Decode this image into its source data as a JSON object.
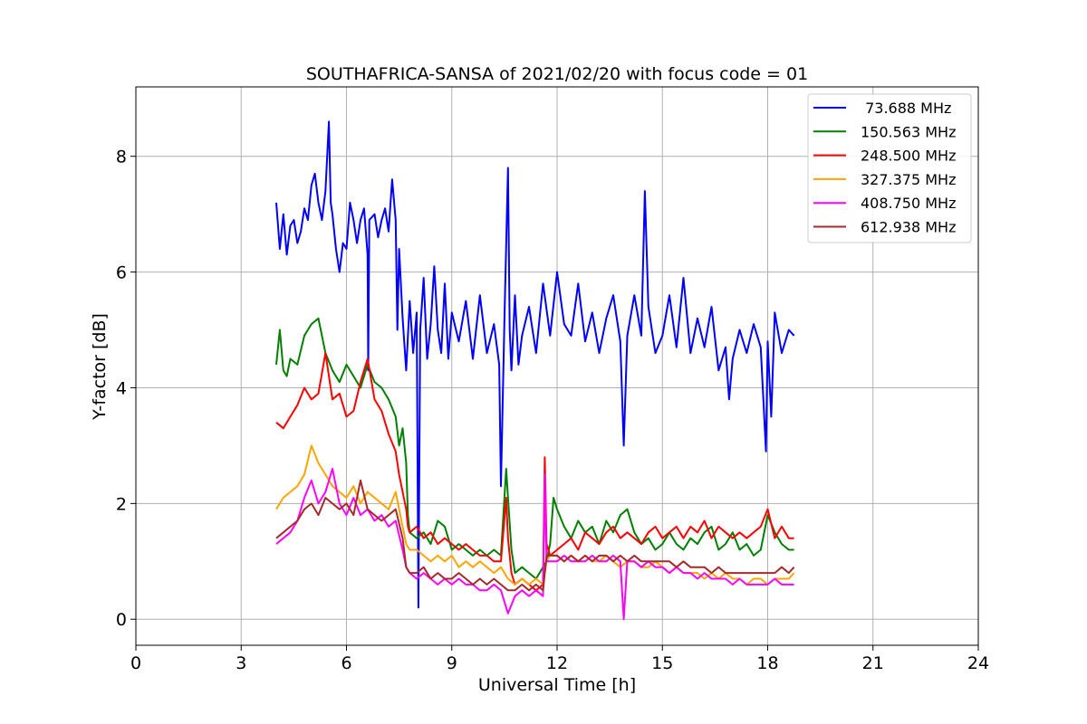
{
  "chart_data": {
    "type": "line",
    "title": "SOUTHAFRICA-SANSA of 2021/02/20 with focus code = 01",
    "xlabel": "Universal Time [h]",
    "ylabel": "Y-factor [dB]",
    "xlim": [
      0,
      24
    ],
    "ylim": [
      -0.45,
      9.2
    ],
    "xticks": [
      0,
      3,
      6,
      9,
      12,
      15,
      18,
      21,
      24
    ],
    "yticks": [
      0,
      2,
      4,
      6,
      8
    ],
    "grid": true,
    "legend_position": "top-right",
    "series": [
      {
        "name": " 73.688 MHz",
        "color": "#0000ff",
        "x": [
          4.0,
          4.1,
          4.2,
          4.3,
          4.4,
          4.5,
          4.6,
          4.7,
          4.8,
          4.9,
          5.0,
          5.1,
          5.2,
          5.3,
          5.4,
          5.5,
          5.55,
          5.6,
          5.7,
          5.8,
          5.9,
          6.0,
          6.1,
          6.2,
          6.3,
          6.4,
          6.5,
          6.6,
          6.62,
          6.65,
          6.8,
          6.9,
          7.0,
          7.1,
          7.2,
          7.3,
          7.4,
          7.45,
          7.5,
          7.6,
          7.7,
          7.8,
          7.9,
          8.0,
          8.05,
          8.1,
          8.2,
          8.3,
          8.4,
          8.5,
          8.6,
          8.7,
          8.8,
          8.9,
          9.0,
          9.2,
          9.4,
          9.6,
          9.8,
          10.0,
          10.2,
          10.35,
          10.4,
          10.5,
          10.6,
          10.65,
          10.7,
          10.8,
          10.9,
          11.0,
          11.2,
          11.4,
          11.6,
          11.8,
          12.0,
          12.2,
          12.4,
          12.6,
          12.8,
          13.0,
          13.2,
          13.4,
          13.6,
          13.8,
          13.9,
          14.0,
          14.2,
          14.4,
          14.5,
          14.6,
          14.8,
          15.0,
          15.2,
          15.4,
          15.6,
          15.8,
          16.0,
          16.2,
          16.4,
          16.6,
          16.8,
          16.9,
          17.0,
          17.2,
          17.4,
          17.6,
          17.8,
          17.95,
          18.0,
          18.1,
          18.2,
          18.4,
          18.6,
          18.75
        ],
        "y": [
          7.2,
          6.4,
          7.0,
          6.3,
          6.8,
          6.9,
          6.5,
          6.7,
          7.1,
          6.9,
          7.5,
          7.7,
          7.2,
          6.9,
          7.4,
          8.6,
          7.2,
          7.0,
          6.4,
          6.0,
          6.5,
          6.4,
          7.2,
          6.9,
          6.5,
          6.9,
          7.1,
          6.3,
          4.3,
          6.9,
          7.0,
          6.6,
          6.9,
          7.1,
          6.7,
          7.6,
          6.9,
          5.0,
          6.4,
          5.2,
          4.3,
          5.5,
          4.6,
          5.3,
          0.2,
          5.0,
          5.9,
          4.5,
          5.1,
          6.1,
          5.0,
          4.6,
          5.8,
          4.5,
          5.3,
          4.8,
          5.5,
          4.5,
          5.6,
          4.6,
          5.1,
          4.4,
          2.3,
          5.2,
          7.8,
          5.0,
          4.3,
          5.6,
          4.4,
          4.9,
          5.4,
          4.6,
          5.8,
          4.9,
          6.0,
          5.1,
          4.9,
          5.8,
          4.8,
          5.3,
          4.6,
          5.2,
          5.6,
          4.8,
          3.0,
          4.9,
          5.6,
          4.9,
          7.4,
          5.4,
          4.6,
          4.9,
          5.6,
          4.7,
          5.9,
          4.6,
          5.2,
          4.7,
          5.4,
          4.3,
          4.7,
          3.8,
          4.5,
          5.0,
          4.6,
          5.1,
          4.7,
          2.9,
          4.8,
          3.5,
          5.3,
          4.6,
          5.0,
          4.9
        ]
      },
      {
        "name": "150.563 MHz",
        "color": "#008000",
        "x": [
          4.0,
          4.1,
          4.2,
          4.3,
          4.4,
          4.6,
          4.8,
          5.0,
          5.2,
          5.4,
          5.6,
          5.8,
          6.0,
          6.2,
          6.4,
          6.6,
          6.8,
          7.0,
          7.2,
          7.4,
          7.5,
          7.6,
          7.7,
          7.75,
          7.8,
          8.0,
          8.2,
          8.4,
          8.6,
          8.8,
          9.0,
          9.2,
          9.4,
          9.6,
          9.8,
          10.0,
          10.2,
          10.4,
          10.55,
          10.6,
          10.7,
          10.8,
          11.0,
          11.2,
          11.4,
          11.6,
          11.7,
          11.8,
          11.9,
          12.0,
          12.2,
          12.4,
          12.6,
          12.8,
          13.0,
          13.2,
          13.4,
          13.6,
          13.8,
          14.0,
          14.2,
          14.4,
          14.6,
          14.8,
          15.0,
          15.2,
          15.4,
          15.6,
          15.8,
          16.0,
          16.2,
          16.4,
          16.6,
          16.8,
          17.0,
          17.2,
          17.4,
          17.6,
          17.8,
          18.0,
          18.2,
          18.4,
          18.6,
          18.75
        ],
        "y": [
          4.4,
          5.0,
          4.3,
          4.2,
          4.5,
          4.4,
          4.9,
          5.1,
          5.2,
          4.6,
          4.3,
          4.1,
          4.4,
          4.2,
          4.0,
          4.4,
          4.1,
          4.0,
          3.8,
          3.5,
          3.0,
          3.3,
          2.7,
          1.8,
          1.5,
          1.4,
          1.5,
          1.3,
          1.7,
          1.6,
          1.2,
          1.3,
          1.2,
          1.1,
          1.2,
          1.1,
          1.2,
          1.1,
          2.6,
          2.1,
          1.2,
          0.8,
          0.9,
          0.8,
          0.7,
          0.9,
          1.0,
          1.3,
          2.1,
          1.9,
          1.6,
          1.4,
          1.7,
          1.5,
          1.6,
          1.3,
          1.7,
          1.5,
          1.8,
          1.9,
          1.5,
          1.3,
          1.4,
          1.2,
          1.3,
          1.5,
          1.3,
          1.2,
          1.4,
          1.3,
          1.5,
          1.6,
          1.2,
          1.3,
          1.5,
          1.2,
          1.3,
          1.1,
          1.2,
          1.8,
          1.5,
          1.3,
          1.2,
          1.2
        ]
      },
      {
        "name": "248.500 MHz",
        "color": "#ff0000",
        "x": [
          4.0,
          4.2,
          4.4,
          4.6,
          4.8,
          5.0,
          5.2,
          5.4,
          5.6,
          5.8,
          6.0,
          6.2,
          6.4,
          6.6,
          6.8,
          7.0,
          7.2,
          7.4,
          7.5,
          7.6,
          7.7,
          7.75,
          7.8,
          8.0,
          8.2,
          8.4,
          8.6,
          8.8,
          9.0,
          9.2,
          9.4,
          9.6,
          9.8,
          10.0,
          10.2,
          10.4,
          10.55,
          10.6,
          10.7,
          10.8,
          11.0,
          11.2,
          11.4,
          11.6,
          11.65,
          11.7,
          11.8,
          12.0,
          12.2,
          12.4,
          12.6,
          12.8,
          13.0,
          13.2,
          13.4,
          13.6,
          13.8,
          14.0,
          14.2,
          14.4,
          14.6,
          14.8,
          15.0,
          15.2,
          15.4,
          15.6,
          15.8,
          16.0,
          16.2,
          16.4,
          16.6,
          16.8,
          17.0,
          17.2,
          17.4,
          17.6,
          17.8,
          18.0,
          18.2,
          18.4,
          18.6,
          18.75
        ],
        "y": [
          3.4,
          3.3,
          3.5,
          3.7,
          4.0,
          3.8,
          3.9,
          4.6,
          3.8,
          3.9,
          3.5,
          3.6,
          4.1,
          4.5,
          3.8,
          3.6,
          3.2,
          2.9,
          2.5,
          2.2,
          1.9,
          1.6,
          1.5,
          1.6,
          1.4,
          1.5,
          1.3,
          1.4,
          1.3,
          1.2,
          1.3,
          1.2,
          1.1,
          1.1,
          1.0,
          1.0,
          2.1,
          1.4,
          0.8,
          0.6,
          0.7,
          0.6,
          0.5,
          0.6,
          2.8,
          1.3,
          1.1,
          1.2,
          1.3,
          1.4,
          1.2,
          1.5,
          1.4,
          1.3,
          1.5,
          1.6,
          1.4,
          1.5,
          1.4,
          1.3,
          1.5,
          1.6,
          1.4,
          1.5,
          1.6,
          1.4,
          1.6,
          1.5,
          1.7,
          1.4,
          1.6,
          1.5,
          1.4,
          1.5,
          1.4,
          1.5,
          1.6,
          1.9,
          1.4,
          1.6,
          1.4,
          1.4
        ]
      },
      {
        "name": "327.375 MHz",
        "color": "#ffa500",
        "x": [
          4.0,
          4.2,
          4.4,
          4.6,
          4.8,
          5.0,
          5.2,
          5.4,
          5.6,
          5.8,
          6.0,
          6.2,
          6.4,
          6.6,
          6.8,
          7.0,
          7.2,
          7.4,
          7.6,
          7.7,
          7.8,
          8.0,
          8.2,
          8.4,
          8.6,
          8.8,
          9.0,
          9.2,
          9.4,
          9.6,
          9.8,
          10.0,
          10.2,
          10.4,
          10.6,
          10.8,
          11.0,
          11.2,
          11.4,
          11.6,
          11.7,
          11.8,
          12.0,
          12.2,
          12.4,
          12.6,
          12.8,
          13.0,
          13.2,
          13.4,
          13.6,
          13.8,
          14.0,
          14.2,
          14.4,
          14.6,
          14.8,
          15.0,
          15.2,
          15.4,
          15.6,
          15.8,
          16.0,
          16.2,
          16.4,
          16.6,
          16.8,
          17.0,
          17.2,
          17.4,
          17.6,
          17.8,
          18.0,
          18.2,
          18.4,
          18.6,
          18.75
        ],
        "y": [
          1.9,
          2.1,
          2.2,
          2.3,
          2.5,
          3.0,
          2.7,
          2.5,
          2.3,
          2.2,
          2.1,
          2.3,
          2.0,
          2.2,
          2.1,
          2.0,
          1.9,
          2.2,
          1.6,
          1.3,
          1.2,
          1.2,
          1.1,
          1.0,
          1.1,
          1.0,
          1.1,
          0.9,
          1.0,
          0.9,
          1.0,
          0.9,
          0.8,
          0.9,
          0.7,
          0.6,
          0.7,
          0.6,
          0.7,
          0.6,
          1.0,
          1.1,
          1.1,
          1.0,
          1.1,
          1.0,
          1.1,
          1.0,
          1.0,
          1.1,
          1.0,
          0.9,
          1.0,
          1.0,
          0.9,
          0.9,
          1.0,
          0.9,
          0.8,
          0.9,
          0.8,
          0.8,
          0.8,
          0.7,
          0.8,
          0.7,
          0.8,
          0.7,
          0.7,
          0.6,
          0.7,
          0.7,
          0.6,
          0.7,
          0.7,
          0.7,
          0.8
        ]
      },
      {
        "name": "408.750 MHz",
        "color": "#ff00ff",
        "x": [
          4.0,
          4.2,
          4.4,
          4.6,
          4.8,
          5.0,
          5.2,
          5.4,
          5.6,
          5.8,
          6.0,
          6.2,
          6.4,
          6.6,
          6.8,
          7.0,
          7.2,
          7.4,
          7.6,
          7.7,
          7.8,
          8.0,
          8.2,
          8.4,
          8.6,
          8.8,
          9.0,
          9.2,
          9.4,
          9.6,
          9.8,
          10.0,
          10.2,
          10.4,
          10.6,
          10.8,
          11.0,
          11.2,
          11.4,
          11.6,
          11.65,
          11.7,
          11.8,
          12.0,
          12.2,
          12.4,
          12.6,
          12.8,
          13.0,
          13.2,
          13.4,
          13.6,
          13.8,
          13.9,
          14.0,
          14.2,
          14.4,
          14.6,
          14.8,
          15.0,
          15.2,
          15.4,
          15.6,
          15.8,
          16.0,
          16.2,
          16.4,
          16.6,
          16.8,
          17.0,
          17.2,
          17.4,
          17.6,
          17.8,
          18.0,
          18.2,
          18.4,
          18.6,
          18.75
        ],
        "y": [
          1.3,
          1.4,
          1.5,
          1.7,
          2.1,
          2.4,
          2.0,
          2.2,
          2.6,
          2.0,
          1.8,
          2.1,
          1.8,
          1.9,
          1.7,
          1.8,
          1.6,
          1.7,
          1.2,
          0.9,
          0.8,
          0.7,
          0.8,
          0.7,
          0.6,
          0.7,
          0.6,
          0.7,
          0.6,
          0.6,
          0.5,
          0.5,
          0.6,
          0.5,
          0.1,
          0.4,
          0.5,
          0.4,
          0.5,
          0.4,
          2.5,
          1.0,
          1.0,
          1.0,
          1.1,
          1.0,
          1.0,
          1.0,
          1.1,
          1.0,
          1.0,
          1.1,
          1.0,
          0.0,
          1.0,
          1.0,
          0.9,
          1.0,
          0.9,
          0.9,
          0.8,
          0.9,
          0.8,
          0.8,
          0.7,
          0.8,
          0.7,
          0.7,
          0.7,
          0.6,
          0.7,
          0.6,
          0.6,
          0.6,
          0.6,
          0.7,
          0.6,
          0.6,
          0.6
        ]
      },
      {
        "name": "612.938 MHz",
        "color": "#a52a2a",
        "x": [
          4.0,
          4.2,
          4.4,
          4.6,
          4.8,
          5.0,
          5.2,
          5.4,
          5.6,
          5.8,
          6.0,
          6.2,
          6.4,
          6.6,
          6.8,
          7.0,
          7.2,
          7.4,
          7.6,
          7.7,
          7.8,
          8.0,
          8.2,
          8.4,
          8.6,
          8.8,
          9.0,
          9.2,
          9.4,
          9.6,
          9.8,
          10.0,
          10.2,
          10.4,
          10.6,
          10.8,
          11.0,
          11.2,
          11.4,
          11.6,
          11.7,
          11.8,
          12.0,
          12.2,
          12.4,
          12.6,
          12.8,
          13.0,
          13.2,
          13.4,
          13.6,
          13.8,
          14.0,
          14.2,
          14.4,
          14.6,
          14.8,
          15.0,
          15.2,
          15.4,
          15.6,
          15.8,
          16.0,
          16.2,
          16.4,
          16.6,
          16.8,
          17.0,
          17.2,
          17.4,
          17.6,
          17.8,
          18.0,
          18.2,
          18.4,
          18.6,
          18.75
        ],
        "y": [
          1.4,
          1.5,
          1.6,
          1.7,
          1.9,
          2.0,
          1.8,
          2.1,
          2.0,
          1.9,
          2.0,
          1.8,
          2.4,
          1.9,
          1.8,
          1.7,
          1.8,
          1.9,
          1.4,
          0.9,
          0.8,
          0.8,
          0.9,
          0.7,
          0.8,
          0.7,
          0.7,
          0.8,
          0.7,
          0.6,
          0.7,
          0.6,
          0.7,
          0.6,
          0.5,
          0.5,
          0.6,
          0.5,
          0.6,
          0.5,
          1.1,
          1.1,
          1.1,
          1.0,
          1.1,
          1.0,
          1.1,
          1.0,
          1.1,
          1.1,
          1.0,
          1.1,
          1.0,
          1.1,
          1.0,
          1.0,
          1.0,
          1.0,
          1.0,
          0.9,
          1.0,
          0.9,
          0.9,
          0.9,
          0.8,
          0.9,
          0.8,
          0.8,
          0.8,
          0.8,
          0.8,
          0.8,
          0.8,
          0.8,
          0.9,
          0.8,
          0.9
        ]
      }
    ]
  }
}
